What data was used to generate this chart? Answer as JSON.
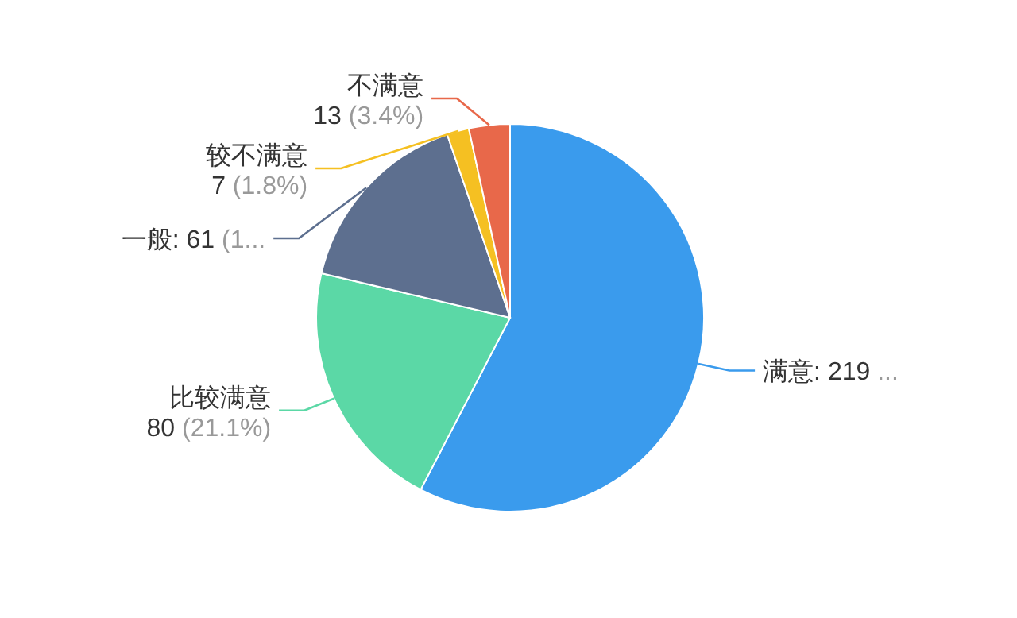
{
  "chart_data": {
    "type": "pie",
    "categories": [
      "满意",
      "比较满意",
      "一般",
      "较不满意",
      "不满意"
    ],
    "values": [
      219,
      80,
      61,
      7,
      13
    ],
    "colors": [
      "#3a9bed",
      "#5bd8a6",
      "#5d6f8f",
      "#f5c022",
      "#e8684a"
    ],
    "value_labels": [
      "219 ...",
      "80 (21.1%)",
      "61 (1...",
      "7 (1.8%)",
      "13 (3.4%)"
    ]
  }
}
